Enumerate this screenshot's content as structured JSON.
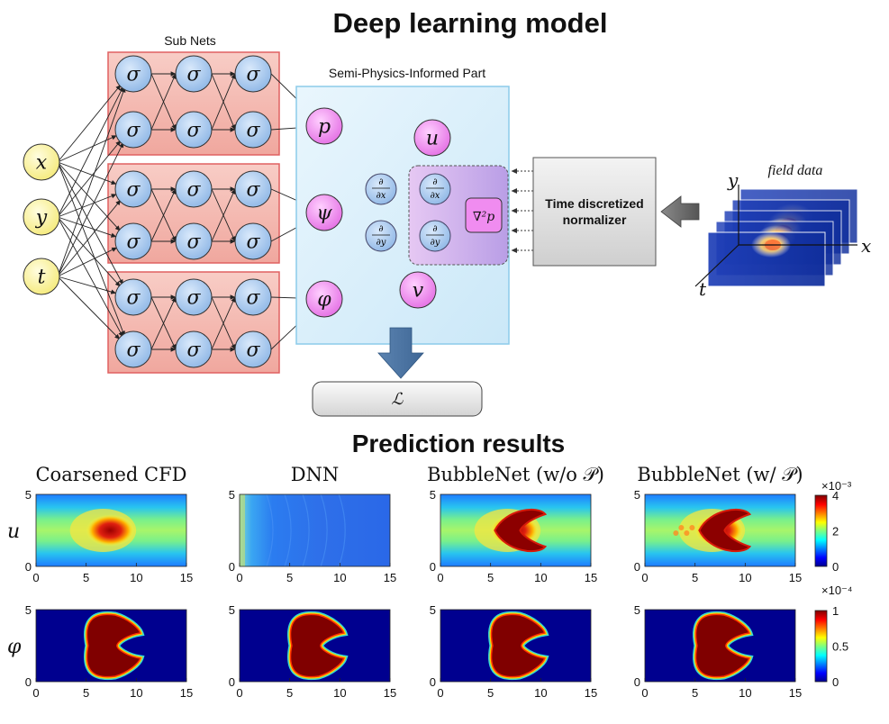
{
  "titles": {
    "model": "Deep learning model",
    "results": "Prediction results"
  },
  "diagram": {
    "subnets_label": "Sub Nets",
    "semi_label": "Semi-Physics-Informed Part",
    "inputs": [
      "x",
      "y",
      "t"
    ],
    "neuron_symbol": "σ",
    "outputs": [
      "p",
      "ψ",
      "φ"
    ],
    "velocities": [
      "u",
      "v"
    ],
    "deriv_top": "∂",
    "deriv_x": "∂x",
    "deriv_y": "∂y",
    "laplacian": "∇²p",
    "normalizer": [
      "Time discretized",
      "normalizer"
    ],
    "field_data_label": "field data",
    "field_axes": [
      "y",
      "x",
      "t"
    ],
    "loss_symbol": "ℒ"
  },
  "results": {
    "columns": [
      "Coarsened CFD",
      "DNN",
      "BubbleNet (w/o 𝒫)",
      "BubbleNet (w/ 𝒫)"
    ],
    "rows": [
      "u",
      "φ"
    ],
    "x_ticks": [
      "0",
      "5",
      "10",
      "15"
    ],
    "y_ticks": [
      "0",
      "5"
    ],
    "colorbar_u": {
      "ticks": [
        "4",
        "2",
        "0"
      ],
      "exponent_top": "×10⁻³",
      "exponent_bottom": "×10⁻⁴"
    },
    "colorbar_phi": {
      "ticks": [
        "1",
        "0.5",
        "0"
      ]
    }
  },
  "colors": {
    "subnet_fill": "#f4b8b0",
    "subnet_border": "#e06060",
    "semi_fill": "#dff0fb",
    "semi_border": "#8ccbea",
    "input_fill": "#fbf5a8",
    "neuron_fill": "#a9c9ec",
    "output_fill": "#ee82ee",
    "deriv_fill": "#9cc7ee",
    "heat_low": "#00008f",
    "heat_high": "#800000"
  }
}
